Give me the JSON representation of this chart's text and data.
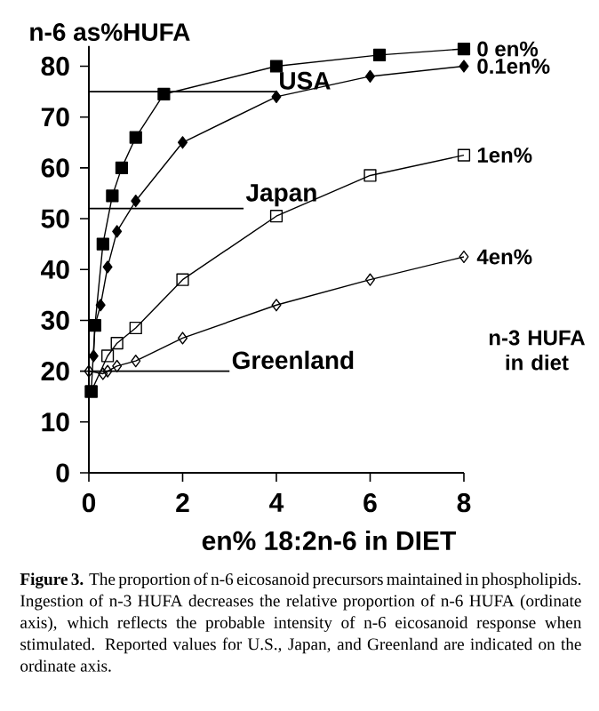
{
  "chart_data": {
    "type": "line",
    "ylabel": "n-6 as%HUFA",
    "xlabel": "en% 18:2n-6 in DIET",
    "legend_title": "n-3 HUFA in diet",
    "xlim": [
      0,
      8
    ],
    "ylim": [
      0,
      84
    ],
    "xticks": [
      0,
      2,
      4,
      6,
      8
    ],
    "yticks": [
      0,
      10,
      20,
      30,
      40,
      50,
      60,
      70,
      80
    ],
    "series": [
      {
        "name": "0 en%",
        "color": "#000000",
        "marker": "square",
        "x": [
          0.05,
          0.13,
          0.3,
          0.5,
          0.7,
          1.0,
          1.6,
          4,
          6.2,
          8
        ],
        "values": [
          16,
          29,
          45,
          54.5,
          60,
          66,
          74.5,
          80,
          82.2,
          83.4
        ]
      },
      {
        "name": "0.1en%",
        "color": "#000000",
        "marker": "diamond",
        "x": [
          0.1,
          0.13,
          0.25,
          0.4,
          0.6,
          1.0,
          2,
          4,
          6,
          8
        ],
        "values": [
          23,
          29,
          33,
          40.5,
          47.5,
          53.5,
          65,
          74,
          78,
          80
        ]
      },
      {
        "name": "1en%",
        "color": "#000000",
        "marker": "square",
        "x": [
          0.05,
          0.4,
          0.6,
          1.0,
          2,
          4,
          6,
          8
        ],
        "values": [
          16,
          23,
          25.5,
          28.5,
          38,
          50.5,
          58.5,
          62.5
        ]
      },
      {
        "name": "4en%",
        "color": "#000000",
        "marker": "diamond",
        "x": [
          0,
          0.3,
          0.4,
          0.6,
          1.0,
          2,
          4,
          6,
          8
        ],
        "values": [
          20,
          19.5,
          20,
          21,
          22,
          26.5,
          33,
          38,
          42.5
        ]
      }
    ],
    "ref_lines": [
      {
        "axis": "y",
        "value": 75,
        "label": "USA"
      },
      {
        "axis": "y",
        "value": 52,
        "label": "Japan"
      },
      {
        "axis": "y",
        "value": 20,
        "label": "Greenland"
      }
    ],
    "annotations": [
      "**Figure 3.** The proportion of n-6 eicosanoid precursors maintained in phospholipids. Ingestion of n-3 HUFA decreases the relative proportion of n-6 HUFA (ordinate axis), which reflects the probable intensity of n-6 eicosanoid response when stimulated. Reported values for U.S., Japan, and Greenland are indicated on the ordinate axis."
    ]
  }
}
